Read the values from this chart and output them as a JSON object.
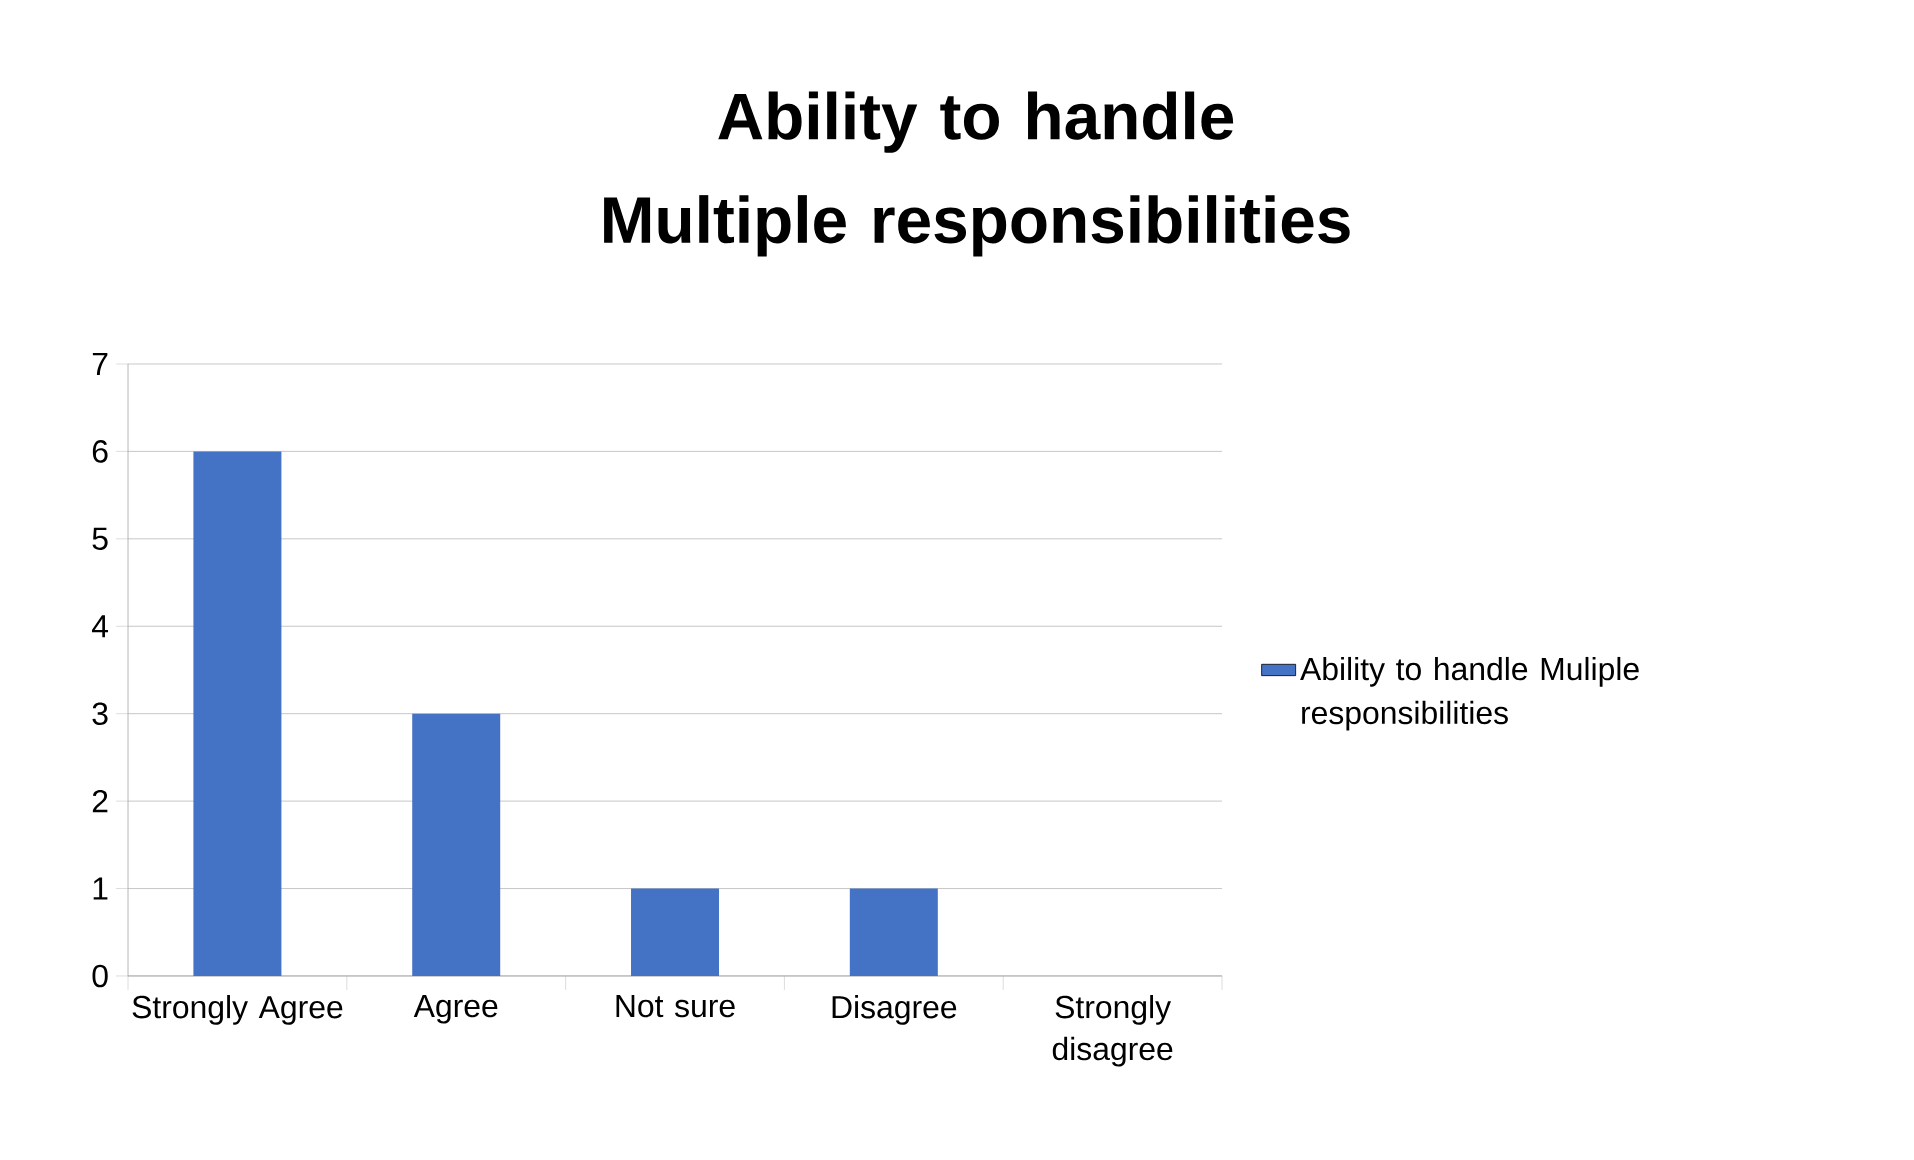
{
  "chart_data": {
    "type": "bar",
    "title": "Ability to handle Multiple responsibilities",
    "categories": [
      "Strongly Agree",
      "Agree",
      "Not sure",
      "Disagree",
      "Strongly disagree"
    ],
    "series": [
      {
        "name": "Ability to handle Muliple responsibilities",
        "color": "#4472c4",
        "values": [
          6,
          3,
          1,
          1,
          0
        ]
      }
    ],
    "ylim": [
      0,
      7
    ],
    "yticks": [
      0,
      1,
      2,
      3,
      4,
      5,
      6,
      7
    ],
    "grid": "y",
    "legend": "right"
  }
}
